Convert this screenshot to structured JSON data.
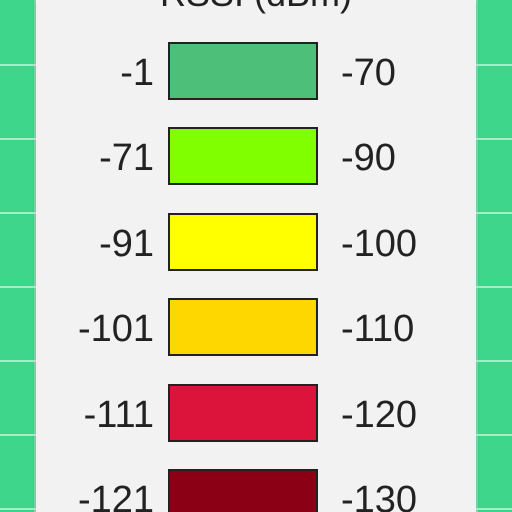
{
  "legend": {
    "title": "RSSI (dBm)",
    "rows": [
      {
        "min": "-1",
        "max": "-70",
        "color": "#4dbf78"
      },
      {
        "min": "-71",
        "max": "-90",
        "color": "#80ff00"
      },
      {
        "min": "-91",
        "max": "-100",
        "color": "#ffff00"
      },
      {
        "min": "-101",
        "max": "-110",
        "color": "#ffd700"
      },
      {
        "min": "-111",
        "max": "-120",
        "color": "#dc143c"
      },
      {
        "min": "-121",
        "max": "-130",
        "color": "#8b0015"
      }
    ]
  },
  "colors": {
    "background": "#3dd68a",
    "panel": "#f2f2f2"
  }
}
